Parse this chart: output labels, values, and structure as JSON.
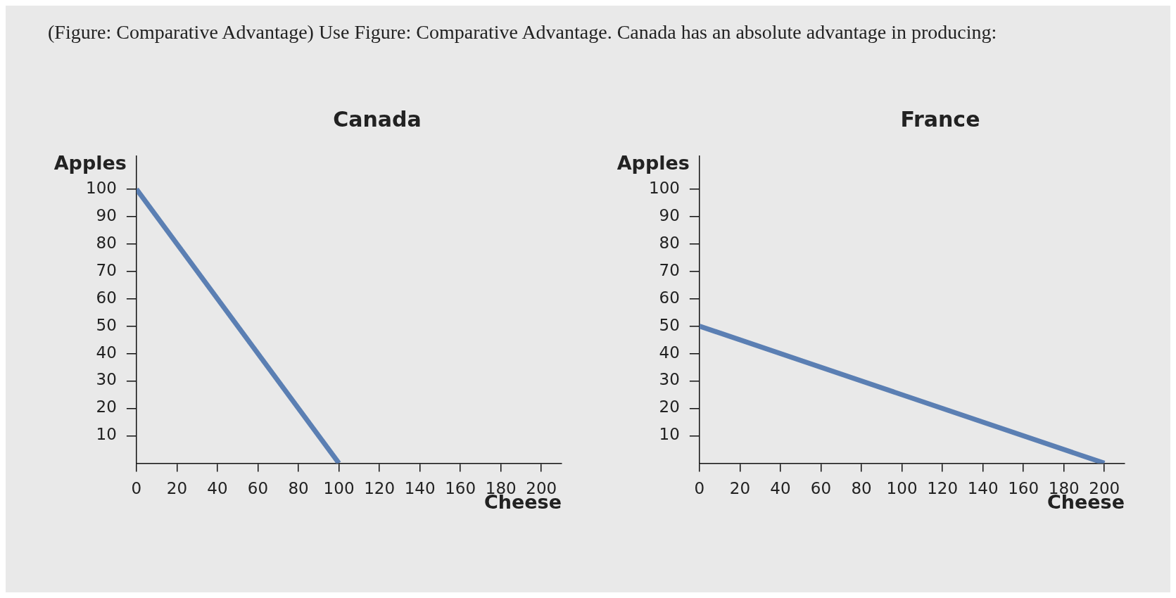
{
  "chart_data": [
    {
      "type": "line",
      "title": "Canada",
      "annotations": [
        "(Figure: Comparative Advantage) Use Figure: Comparative Advantage. Canada has an absolute advantage in producing:"
      ],
      "xlabel": "Cheese",
      "ylabel": "Apples",
      "x": [
        0,
        100
      ],
      "series": [
        {
          "color": "#5b7fb3",
          "values": [
            100,
            0
          ]
        }
      ],
      "xlim": [
        0,
        210
      ],
      "ylim": [
        0,
        112
      ],
      "xticks": [
        0,
        20,
        40,
        60,
        80,
        100,
        120,
        140,
        160,
        180,
        200
      ],
      "yticks": [
        10,
        20,
        30,
        40,
        50,
        60,
        70,
        80,
        90,
        100
      ],
      "grid": false,
      "legend": false,
      "marker": "none",
      "line_style": "solid"
    },
    {
      "type": "line",
      "title": "France",
      "xlabel": "Cheese",
      "ylabel": "Apples",
      "x": [
        0,
        200
      ],
      "series": [
        {
          "color": "#5b7fb3",
          "values": [
            50,
            0
          ]
        }
      ],
      "xlim": [
        0,
        210
      ],
      "ylim": [
        0,
        112
      ],
      "xticks": [
        0,
        20,
        40,
        60,
        80,
        100,
        120,
        140,
        160,
        180,
        200
      ],
      "yticks": [
        10,
        20,
        30,
        40,
        50,
        60,
        70,
        80,
        90,
        100
      ],
      "grid": false,
      "legend": false,
      "marker": "none",
      "line_style": "solid"
    }
  ]
}
